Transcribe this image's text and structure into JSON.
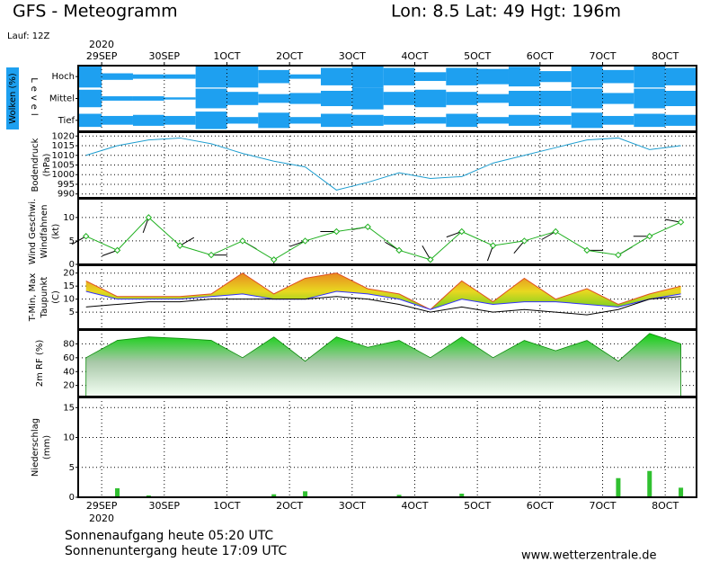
{
  "header": {
    "title": "GFS - Meteogramm",
    "location": "Lon: 8.5 Lat: 49 Hgt: 196m",
    "run": "Lauf: 12Z"
  },
  "time_axis": {
    "year": "2020",
    "xlim": [
      -9,
      228
    ],
    "xticks": [
      {
        "value": 0,
        "label": "29SEP"
      },
      {
        "value": 24,
        "label": "30SEP"
      },
      {
        "value": 48,
        "label": "1OCT"
      },
      {
        "value": 72,
        "label": "2OCT"
      },
      {
        "value": 96,
        "label": "3OCT"
      },
      {
        "value": 120,
        "label": "4OCT"
      },
      {
        "value": 144,
        "label": "5OCT"
      },
      {
        "value": 168,
        "label": "6OCT"
      },
      {
        "value": 192,
        "label": "7OCT"
      },
      {
        "value": 216,
        "label": "8OCT"
      }
    ],
    "x": [
      -6,
      6,
      18,
      30,
      42,
      54,
      66,
      78,
      90,
      102,
      114,
      126,
      138,
      150,
      162,
      174,
      186,
      198,
      210,
      222
    ]
  },
  "chart_data": [
    {
      "type": "cloud",
      "y_label": [
        "Wolken (%)"
      ],
      "level_label": "Level",
      "color": "#1ea0f0",
      "series": [
        {
          "name": "Hoch",
          "values": [
            100,
            30,
            20,
            20,
            100,
            100,
            60,
            20,
            80,
            100,
            80,
            40,
            80,
            70,
            90,
            50,
            100,
            60,
            100,
            80
          ]
        },
        {
          "name": "Mittel",
          "values": [
            80,
            20,
            20,
            10,
            90,
            60,
            40,
            50,
            70,
            100,
            60,
            80,
            60,
            40,
            70,
            70,
            90,
            50,
            90,
            70
          ]
        },
        {
          "name": "Tief",
          "values": [
            60,
            40,
            50,
            40,
            80,
            30,
            70,
            30,
            60,
            50,
            40,
            30,
            60,
            30,
            50,
            40,
            70,
            40,
            60,
            50
          ]
        }
      ]
    },
    {
      "type": "line",
      "y_label": [
        "Bodendruck",
        "(hPa)"
      ],
      "ylim": [
        988,
        1022
      ],
      "yticks": [
        990,
        995,
        1000,
        1005,
        1010,
        1015,
        1020
      ],
      "grid": true,
      "series": [
        {
          "color": "#1e9ed0",
          "values": [
            1010,
            1015,
            1018,
            1019,
            1016,
            1011,
            1007,
            1004,
            992,
            996,
            1001,
            998,
            999,
            1006,
            1010,
            1014,
            1018,
            1019,
            1013,
            1015
          ]
        }
      ]
    },
    {
      "type": "wind",
      "y_label": [
        "Wind Geschwi.",
        "Windfahnen",
        "(kt)"
      ],
      "label_colors": [
        "#20b020",
        "#000000",
        "#000000"
      ],
      "ylim": [
        0,
        14
      ],
      "yticks": [
        0,
        5,
        10
      ],
      "grid": true,
      "series": [
        {
          "color": "#20b020",
          "values": [
            6,
            3,
            10,
            4,
            2,
            5,
            1,
            5,
            7,
            8,
            3,
            1,
            7,
            4,
            5,
            7,
            3,
            2,
            6,
            9
          ]
        }
      ],
      "direction": {
        "color": "#000000",
        "values": [
          240,
          250,
          200,
          60,
          90,
          120,
          180,
          250,
          270,
          260,
          300,
          330,
          250,
          200,
          220,
          240,
          90,
          60,
          270,
          280
        ]
      }
    },
    {
      "type": "band",
      "y_label": [
        "T-Min, Max",
        "Taupunkt",
        "(C)"
      ],
      "label_colors": [
        "#e02020",
        "#000000",
        "#000000"
      ],
      "ylim": [
        -1.5,
        23
      ],
      "yticks": [
        5,
        10,
        15,
        20
      ],
      "grid": true,
      "series": [
        {
          "color": "#e05020",
          "values": [
            17,
            11,
            11,
            11,
            12,
            20,
            12,
            18,
            20,
            14,
            12,
            6,
            17,
            9,
            18,
            10,
            14,
            8,
            12,
            15
          ]
        },
        {
          "color": "#3030ff",
          "values": [
            13,
            10,
            10,
            10,
            11,
            12,
            10,
            10,
            13,
            12,
            10,
            6,
            10,
            8,
            9,
            9,
            8,
            7,
            10,
            12
          ]
        },
        {
          "color": "#000000",
          "values": [
            7,
            8,
            9,
            9,
            10,
            10,
            10,
            10,
            11,
            10,
            8,
            5,
            7,
            5,
            6,
            5,
            4,
            6,
            10,
            11
          ]
        }
      ]
    },
    {
      "type": "area",
      "y_label": [
        "2m RF (%)"
      ],
      "label_colors": [
        "#20b020"
      ],
      "ylim": [
        4,
        100
      ],
      "yticks": [
        20,
        40,
        60,
        80
      ],
      "grid": true,
      "series": [
        {
          "color": "#10c010",
          "values": [
            60,
            85,
            90,
            88,
            85,
            60,
            90,
            55,
            90,
            75,
            85,
            60,
            90,
            60,
            85,
            70,
            85,
            55,
            95,
            80
          ]
        }
      ]
    },
    {
      "type": "bar",
      "y_label": [
        "Niederschlag",
        "(mm)"
      ],
      "ylim": [
        0,
        16.7
      ],
      "yticks": [
        0,
        5,
        10,
        15
      ],
      "grid": true,
      "series": [
        {
          "color": "#30c030",
          "values": [
            0,
            1.5,
            0.3,
            0,
            0,
            0,
            0.5,
            1.0,
            0,
            0,
            0.4,
            0,
            0.6,
            0,
            0,
            0.1,
            0,
            3.2,
            4.4,
            1.6
          ]
        }
      ]
    }
  ],
  "footer": {
    "sunrise": "Sonnenaufgang heute 05:20 UTC",
    "sunset": "Sonnenuntergang heute 17:09 UTC",
    "source": "www.wetterzentrale.de"
  }
}
